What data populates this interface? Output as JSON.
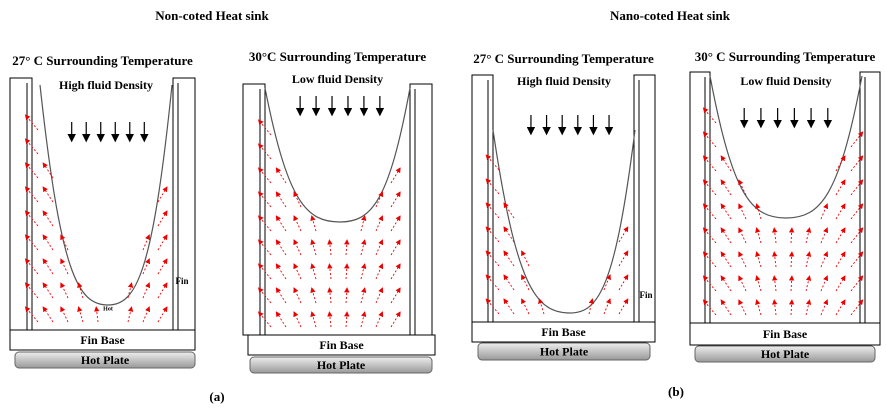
{
  "groups": [
    {
      "title": "Non-coted Heat sink",
      "caption": "(a)",
      "panels": [
        {
          "temperature": "27° C Surrounding Temperature",
          "density": "High fluid Density",
          "base": "Fin Base",
          "plate": "Hot Plate",
          "fin": "Fin",
          "hot": "Hot"
        },
        {
          "temperature": "30°C Surrounding Temperature",
          "density": "Low fluid Density",
          "base": "Fin Base",
          "plate": "Hot Plate"
        }
      ]
    },
    {
      "title": "Nano-coted Heat sink",
      "caption": "(b)",
      "panels": [
        {
          "temperature": "27° C Surrounding Temperature",
          "density": "High fluid Density",
          "base": "Fin Base",
          "plate": "Hot Plate",
          "fin": "Fin"
        },
        {
          "temperature": "30° C Surrounding Temperature",
          "density": "Low fluid Density",
          "base": "Fin Base",
          "plate": "Hot Plate"
        }
      ]
    }
  ]
}
